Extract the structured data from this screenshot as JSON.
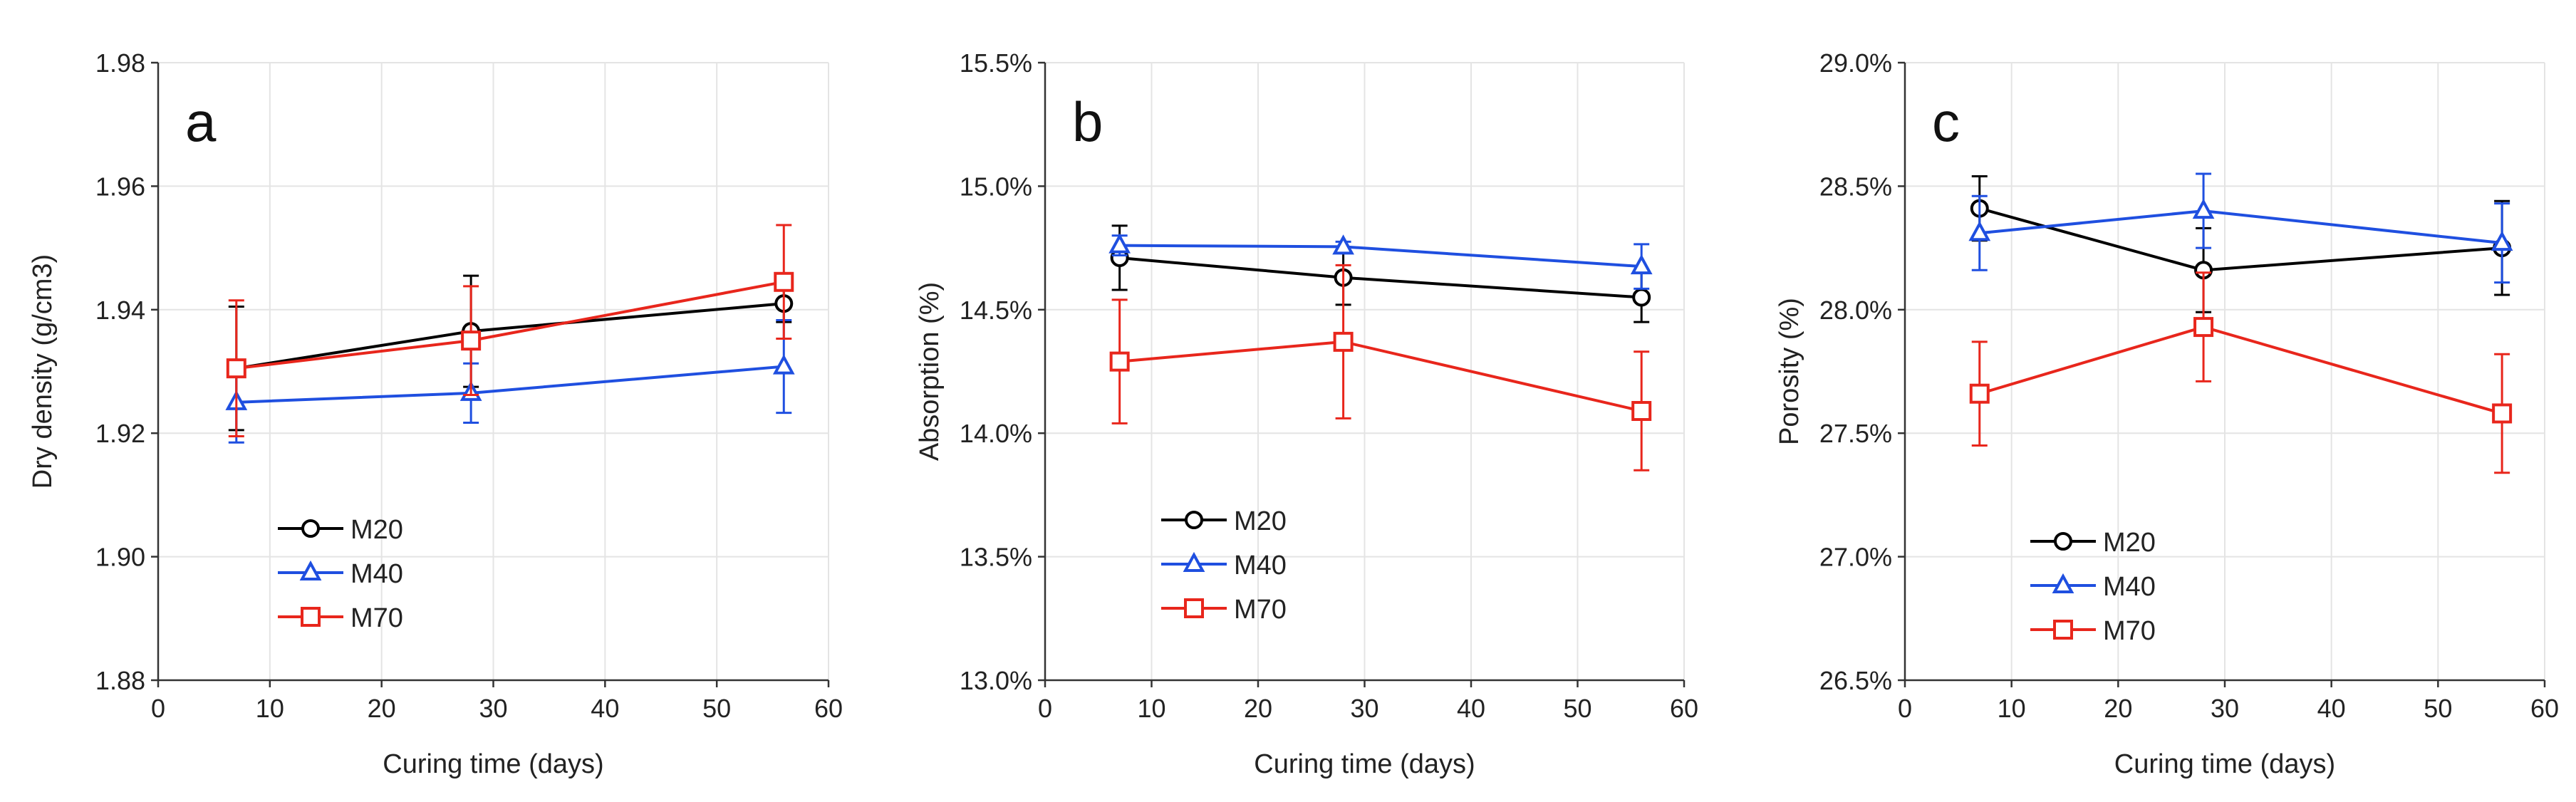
{
  "chart_data": [
    {
      "type": "line",
      "panel_label": "a",
      "xlabel": "Curing time (days)",
      "ylabel": "Dry density (g/cm3)",
      "xlim": [
        0,
        60
      ],
      "ylim": [
        1.88,
        1.98
      ],
      "xticks": [
        0,
        10,
        20,
        30,
        40,
        50,
        60
      ],
      "yticks": [
        1.88,
        1.9,
        1.92,
        1.94,
        1.96,
        1.98
      ],
      "ytick_labels": [
        "1.88",
        "1.90",
        "1.92",
        "1.94",
        "1.96",
        "1.98"
      ],
      "grid": true,
      "legend_position": "lower-left",
      "x": [
        7,
        28,
        56
      ],
      "series": [
        {
          "name": "M20",
          "color": "#000000",
          "marker": "circle",
          "values": [
            1.9305,
            1.9365,
            1.941
          ],
          "error": [
            0.01,
            0.009,
            0.003
          ]
        },
        {
          "name": "M40",
          "color": "#1f4fe0",
          "marker": "triangle",
          "values": [
            1.925,
            1.9265,
            1.9308
          ],
          "error": [
            0.0065,
            0.0048,
            0.0075
          ]
        },
        {
          "name": "M70",
          "color": "#e8261c",
          "marker": "square",
          "values": [
            1.9305,
            1.935,
            1.9445
          ],
          "error": [
            0.011,
            0.0088,
            0.0092
          ]
        }
      ]
    },
    {
      "type": "line",
      "panel_label": "b",
      "xlabel": "Curing time (days)",
      "ylabel": "Absorption (%)",
      "xlim": [
        0,
        60
      ],
      "ylim": [
        13.0,
        15.5
      ],
      "xticks": [
        0,
        10,
        20,
        30,
        40,
        50,
        60
      ],
      "yticks": [
        13.0,
        13.5,
        14.0,
        14.5,
        15.0,
        15.5
      ],
      "ytick_labels": [
        "13.0%",
        "13.5%",
        "14.0%",
        "14.5%",
        "15.0%",
        "15.5%"
      ],
      "grid": true,
      "legend_position": "lower-left",
      "x": [
        7,
        28,
        56
      ],
      "series": [
        {
          "name": "M20",
          "color": "#000000",
          "marker": "circle",
          "values": [
            14.71,
            14.63,
            14.55
          ],
          "error": [
            0.13,
            0.11,
            0.1
          ]
        },
        {
          "name": "M40",
          "color": "#1f4fe0",
          "marker": "triangle",
          "values": [
            14.76,
            14.755,
            14.675
          ],
          "error": [
            0.04,
            0.02,
            0.09
          ]
        },
        {
          "name": "M70",
          "color": "#e8261c",
          "marker": "square",
          "values": [
            14.29,
            14.37,
            14.09
          ],
          "error": [
            0.25,
            0.31,
            0.24
          ]
        }
      ]
    },
    {
      "type": "line",
      "panel_label": "c",
      "xlabel": "Curing time (days)",
      "ylabel": "Porosity (%)",
      "xlim": [
        0,
        60
      ],
      "ylim": [
        26.5,
        29.0
      ],
      "xticks": [
        0,
        10,
        20,
        30,
        40,
        50,
        60
      ],
      "yticks": [
        26.5,
        27.0,
        27.5,
        28.0,
        28.5,
        29.0
      ],
      "ytick_labels": [
        "26.5%",
        "27.0%",
        "27.5%",
        "28.0%",
        "28.5%",
        "29.0%"
      ],
      "grid": true,
      "legend_position": "lower-left",
      "x": [
        7,
        28,
        56
      ],
      "series": [
        {
          "name": "M20",
          "color": "#000000",
          "marker": "circle",
          "values": [
            28.41,
            28.16,
            28.25
          ],
          "error": [
            0.13,
            0.17,
            0.19
          ]
        },
        {
          "name": "M40",
          "color": "#1f4fe0",
          "marker": "triangle",
          "values": [
            28.31,
            28.4,
            28.27
          ],
          "error": [
            0.15,
            0.15,
            0.16
          ]
        },
        {
          "name": "M70",
          "color": "#e8261c",
          "marker": "square",
          "values": [
            27.66,
            27.93,
            27.58
          ],
          "error": [
            0.21,
            0.22,
            0.24
          ]
        }
      ]
    }
  ]
}
